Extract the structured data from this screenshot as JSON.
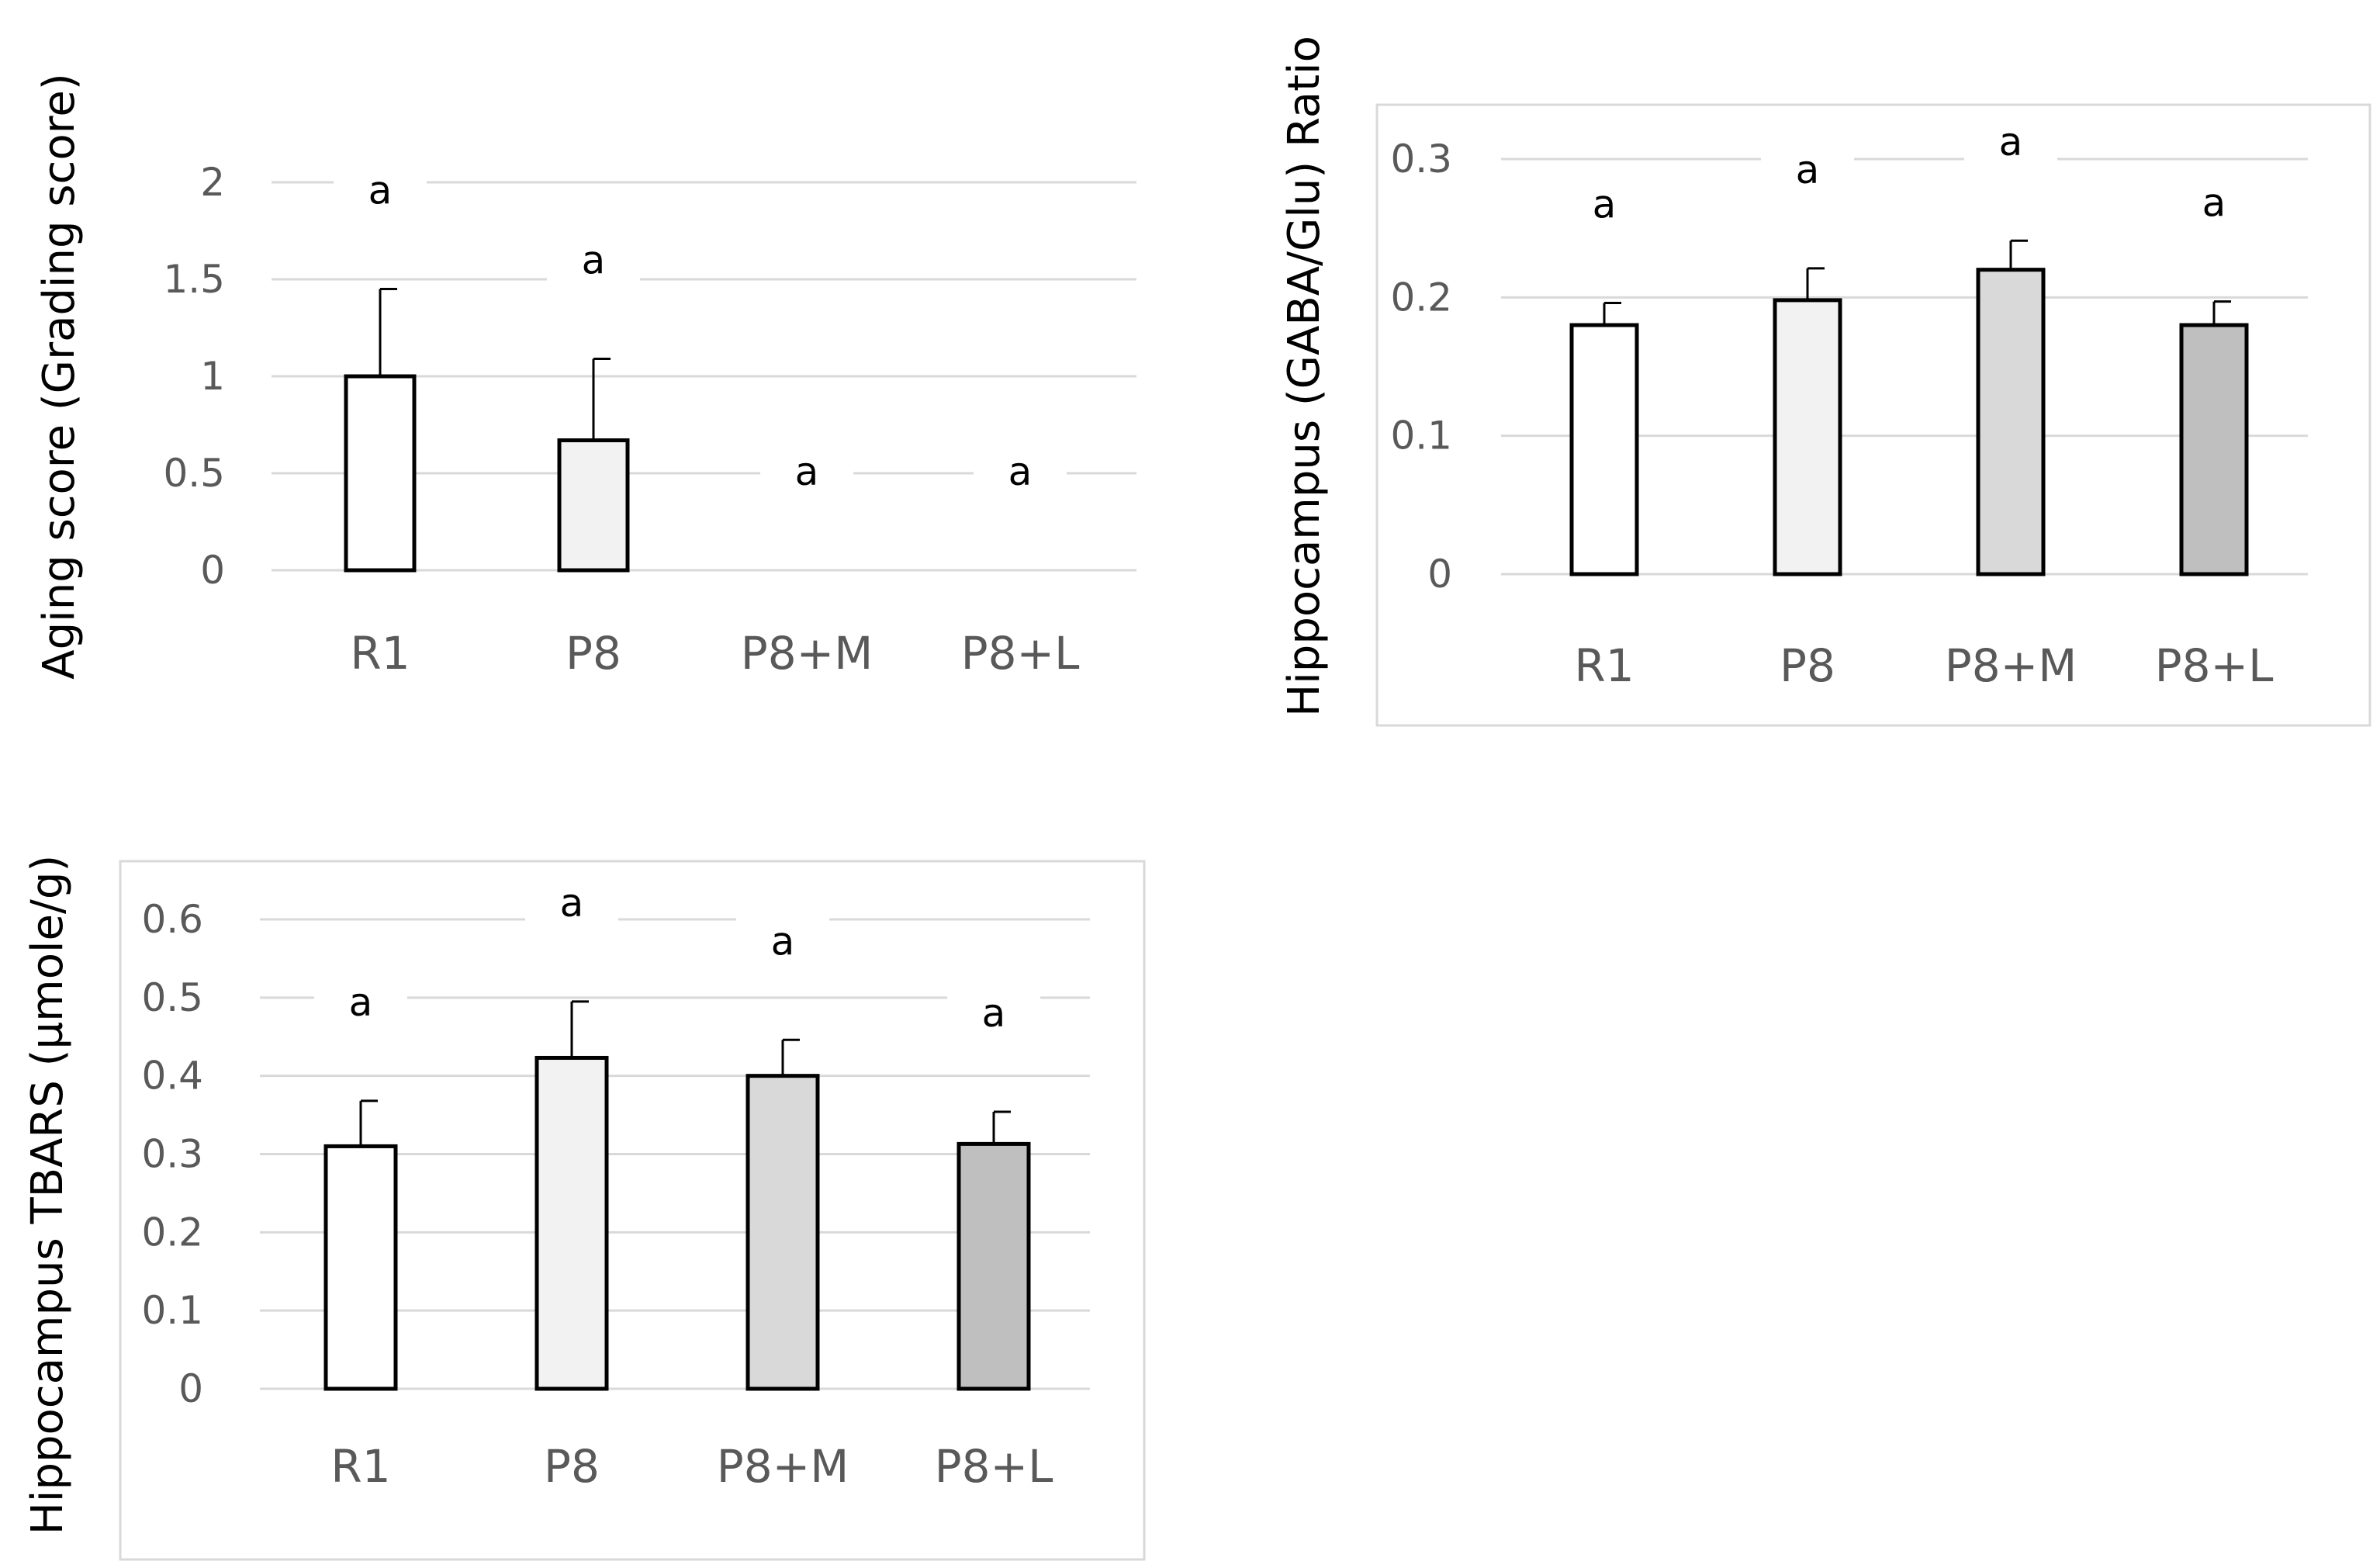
{
  "chart_data": [
    {
      "type": "bar",
      "title": "",
      "xlabel": "",
      "ylabel": "Aging score (Grading score)",
      "categories": [
        "R1",
        "P8",
        "P8+M",
        "P8+L"
      ],
      "values": [
        1.0,
        0.67,
        0,
        0
      ],
      "errors": [
        0.45,
        0.42,
        0,
        0
      ],
      "sig_labels": [
        "a",
        "a",
        "a",
        "a"
      ],
      "ylim": [
        0,
        2
      ],
      "yticks": [
        "0",
        "0.5",
        "1",
        "1.5",
        "2"
      ],
      "bar_colors": [
        "#ffffff",
        "#f2f2f2",
        "#d9d9d9",
        "#bfbfbf"
      ],
      "grid": true
    },
    {
      "type": "bar",
      "title": "",
      "xlabel": "",
      "ylabel": "Hippocampus (GABA/Glu) Ratio",
      "categories": [
        "R1",
        "P8",
        "P8+M",
        "P8+L"
      ],
      "values": [
        0.18,
        0.198,
        0.22,
        0.18
      ],
      "errors": [
        0.016,
        0.023,
        0.021,
        0.017
      ],
      "sig_labels": [
        "a",
        "a",
        "a",
        "a"
      ],
      "ylim": [
        0,
        0.3
      ],
      "yticks": [
        "0",
        "0.1",
        "0.2",
        "0.3"
      ],
      "bar_colors": [
        "#ffffff",
        "#f2f2f2",
        "#d9d9d9",
        "#bfbfbf"
      ],
      "grid": true
    },
    {
      "type": "bar",
      "title": "",
      "xlabel": "",
      "ylabel": "Hippocampus TBARS (µmole/g)",
      "categories": [
        "R1",
        "P8",
        "P8+M",
        "P8+L"
      ],
      "values": [
        0.31,
        0.423,
        0.4,
        0.313
      ],
      "errors": [
        0.058,
        0.072,
        0.046,
        0.041
      ],
      "sig_labels": [
        "a",
        "a",
        "a",
        "a"
      ],
      "ylim": [
        0,
        0.6
      ],
      "yticks": [
        "0",
        "0.1",
        "0.2",
        "0.3",
        "0.4",
        "0.5",
        "0.6"
      ],
      "bar_colors": [
        "#ffffff",
        "#f2f2f2",
        "#d9d9d9",
        "#bfbfbf"
      ],
      "grid": true
    }
  ]
}
